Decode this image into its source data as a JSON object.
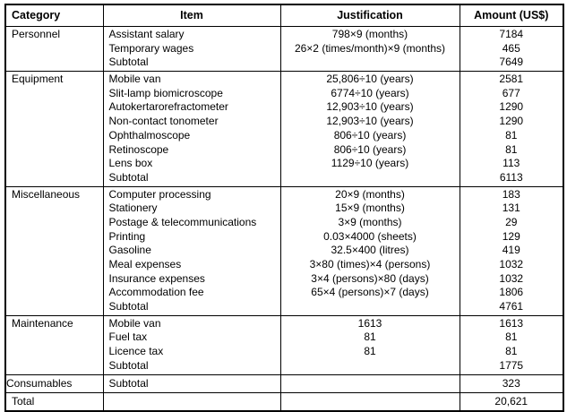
{
  "table": {
    "headers": [
      "Category",
      "Item",
      "Justification",
      "Amount (US$)"
    ],
    "sections": [
      {
        "category": "Personnel",
        "rows": [
          {
            "item": "Assistant salary",
            "justification": "798×9 (months)",
            "amount": "7184"
          },
          {
            "item": "Temporary wages",
            "justification": "26×2 (times/month)×9 (months)",
            "amount": "465"
          },
          {
            "item": "Subtotal",
            "justification": "",
            "amount": "7649"
          }
        ]
      },
      {
        "category": "Equipment",
        "rows": [
          {
            "item": "Mobile van",
            "justification": "25,806÷10 (years)",
            "amount": "2581"
          },
          {
            "item": "Slit-lamp biomicroscope",
            "justification": "6774÷10 (years)",
            "amount": "677"
          },
          {
            "item": "Autokertarorefractometer",
            "justification": "12,903÷10 (years)",
            "amount": "1290"
          },
          {
            "item": "Non-contact tonometer",
            "justification": "12,903÷10 (years)",
            "amount": "1290"
          },
          {
            "item": "Ophthalmoscope",
            "justification": "806÷10 (years)",
            "amount": "81"
          },
          {
            "item": "Retinoscope",
            "justification": "806÷10 (years)",
            "amount": "81"
          },
          {
            "item": "Lens box",
            "justification": "1129÷10 (years)",
            "amount": "113"
          },
          {
            "item": "Subtotal",
            "justification": "",
            "amount": "6113"
          }
        ]
      },
      {
        "category": "Miscellaneous",
        "rows": [
          {
            "item": "Computer processing",
            "justification": "20×9 (months)",
            "amount": "183"
          },
          {
            "item": "Stationery",
            "justification": "15×9 (months)",
            "amount": "131"
          },
          {
            "item": "Postage & telecommunications",
            "justification": "3×9 (months)",
            "amount": "29"
          },
          {
            "item": "Printing",
            "justification": "0.03×4000 (sheets)",
            "amount": "129"
          },
          {
            "item": "Gasoline",
            "justification": "32.5×400 (litres)",
            "amount": "419"
          },
          {
            "item": "Meal expenses",
            "justification": "3×80 (times)×4 (persons)",
            "amount": "1032"
          },
          {
            "item": "Insurance expenses",
            "justification": "3×4 (persons)×80 (days)",
            "amount": "1032"
          },
          {
            "item": "Accommodation fee",
            "justification": "65×4 (persons)×7 (days)",
            "amount": "1806"
          },
          {
            "item": "Subtotal",
            "justification": "",
            "amount": "4761"
          }
        ]
      },
      {
        "category": "Maintenance",
        "rows": [
          {
            "item": "Mobile van",
            "justification": "1613",
            "amount": "1613"
          },
          {
            "item": "Fuel tax",
            "justification": "81",
            "amount": "81"
          },
          {
            "item": "Licence tax",
            "justification": "81",
            "amount": "81"
          },
          {
            "item": "Subtotal",
            "justification": "",
            "amount": "1775"
          }
        ]
      },
      {
        "category": "Consumables",
        "rows": [
          {
            "item": "Subtotal",
            "justification": "",
            "amount": "323"
          }
        ]
      }
    ],
    "total": {
      "category": "Total",
      "item": "",
      "justification": "",
      "amount": "20,621"
    }
  }
}
